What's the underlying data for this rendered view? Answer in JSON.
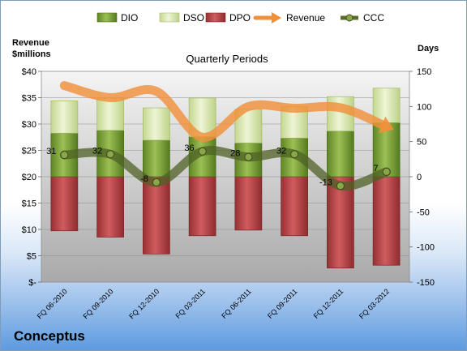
{
  "company": "Conceptus",
  "chart_data": {
    "type": "bar",
    "title": "Quarterly Periods",
    "left_axis_label": [
      "Revenue",
      "$millions"
    ],
    "right_axis_label": "Days",
    "left_ticks": [
      "$40",
      "$35",
      "$30",
      "$25",
      "$20",
      "$15",
      "$10",
      "$5",
      "$-"
    ],
    "right_ticks": [
      "150",
      "100",
      "50",
      "0",
      "-50",
      "-100",
      "-150"
    ],
    "left_ylim": [
      0,
      40
    ],
    "right_ylim": [
      -150,
      150
    ],
    "grid": true,
    "legend_position": "top",
    "categories": [
      "FQ 06-2010",
      "FQ 09-2010",
      "FQ 12-2010",
      "FQ 03-2011",
      "FQ 06-2011",
      "FQ 09-2011",
      "FQ 12-2011",
      "FQ 03-2012"
    ],
    "series": [
      {
        "name": "DIO",
        "axis": "days",
        "values": [
          62,
          66,
          52,
          57,
          48,
          55,
          65,
          77
        ],
        "color": "#7ea03a"
      },
      {
        "name": "DSO",
        "axis": "days",
        "values": [
          46,
          46,
          46,
          55,
          48,
          45,
          49,
          49
        ],
        "color": "#dbe7b4"
      },
      {
        "name": "DPO",
        "axis": "days",
        "values": [
          -77,
          -86,
          -110,
          -84,
          -76,
          -84,
          -130,
          -126
        ],
        "color": "#b84548"
      },
      {
        "name": "Revenue",
        "axis": "revenue",
        "values": [
          37.3,
          35.0,
          36.2,
          27.5,
          33.3,
          33.0,
          33.1,
          29.5
        ],
        "color": "#f0903a"
      },
      {
        "name": "CCC",
        "axis": "days",
        "values": [
          31,
          32,
          -8,
          36,
          28,
          32,
          -13,
          7
        ],
        "color": "#5a6e2c"
      }
    ],
    "ccc_labels": [
      "31",
      "32",
      "-8",
      "36",
      "28",
      "32",
      "-13",
      "7"
    ]
  }
}
